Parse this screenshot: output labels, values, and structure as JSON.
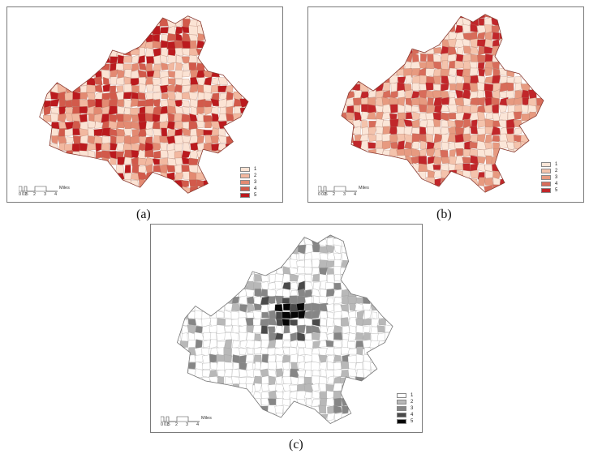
{
  "panels": [
    {
      "id": "a",
      "caption": "(a)",
      "colors": [
        "#fbe3d4",
        "#f2b8a0",
        "#e38a72",
        "#d25a4b",
        "#bb1a1e"
      ],
      "legend": [
        "1",
        "2",
        "3",
        "4",
        "5"
      ],
      "scale_ticks": [
        "0",
        "0.5",
        "1",
        "2",
        "3",
        "4"
      ],
      "scale_unit": "Miles"
    },
    {
      "id": "b",
      "caption": "(b)",
      "colors": [
        "#fbe6d8",
        "#f4c3ac",
        "#e79a80",
        "#d86c5a",
        "#c1262a"
      ],
      "legend": [
        "1",
        "2",
        "3",
        "4",
        "5"
      ],
      "scale_ticks": [
        "0",
        "0.5",
        "1",
        "2",
        "3",
        "4"
      ],
      "scale_unit": "Miles"
    },
    {
      "id": "c",
      "caption": "(c)",
      "colors": [
        "#ffffff",
        "#b8b8b8",
        "#868686",
        "#4a4a4a",
        "#050505"
      ],
      "legend": [
        "1",
        "2",
        "3",
        "4",
        "5"
      ],
      "scale_ticks": [
        "0",
        "0.5",
        "1",
        "2",
        "3",
        "4"
      ],
      "scale_unit": "Miles"
    }
  ]
}
